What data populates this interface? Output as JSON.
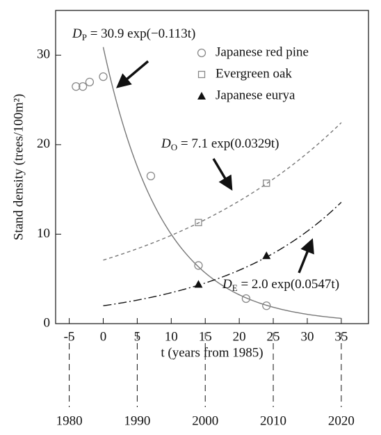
{
  "chart_data": {
    "type": "scatter",
    "x_label": "t (years from 1985)",
    "y_label": "Stand density (trees/100m²)",
    "xlim": [
      -7,
      39
    ],
    "ylim": [
      0,
      35
    ],
    "xticks": [
      -5,
      0,
      5,
      10,
      15,
      20,
      25,
      30,
      35
    ],
    "yticks": [
      0,
      10,
      20,
      30
    ],
    "year_ticks": [
      {
        "value": -5,
        "label": "1980"
      },
      {
        "value": 5,
        "label": "1990"
      },
      {
        "value": 15,
        "label": "2000"
      },
      {
        "value": 25,
        "label": "2010"
      },
      {
        "value": 35,
        "label": "2020"
      }
    ],
    "series": [
      {
        "name": "Japanese red pine",
        "color": "#888888",
        "marker": "circle",
        "x": [
          -4,
          -3,
          -2,
          0,
          7,
          14,
          21,
          24
        ],
        "values": [
          26.5,
          26.5,
          27,
          27.6,
          16.5,
          6.5,
          2.8,
          2.0
        ]
      },
      {
        "name": "Evergreen oak",
        "color": "#888888",
        "marker": "square",
        "x": [
          14,
          24
        ],
        "values": [
          11.3,
          15.7
        ]
      },
      {
        "name": "Japanese eurya",
        "color": "#111111",
        "marker": "triangle",
        "x": [
          14,
          24
        ],
        "values": [
          4.4,
          7.6
        ]
      }
    ],
    "fits": [
      {
        "symbol": "D",
        "subscript": "P",
        "expression": " = 30.9 exp(−0.113t)",
        "a": 30.9,
        "b": -0.113,
        "domain": [
          0,
          35
        ],
        "color": "#777777",
        "dash": "none"
      },
      {
        "symbol": "D",
        "subscript": "O",
        "expression": " = 7.1 exp(0.0329t)",
        "a": 7.1,
        "b": 0.0329,
        "domain": [
          0,
          35
        ],
        "color": "#777777",
        "dash": "5 4"
      },
      {
        "symbol": "D",
        "subscript": "E",
        "expression": " = 2.0 exp(0.0547t)",
        "a": 2.0,
        "b": 0.0547,
        "domain": [
          0,
          35
        ],
        "color": "#111111",
        "dash": "12 4 2 4"
      }
    ]
  }
}
